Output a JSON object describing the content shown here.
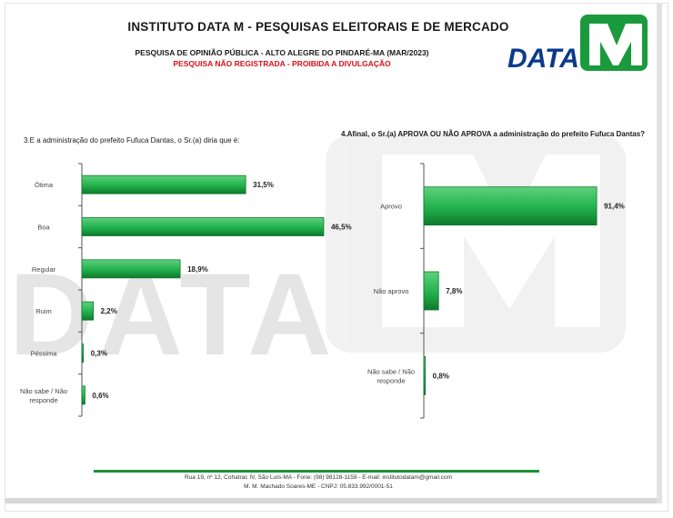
{
  "header": {
    "title": "INSTITUTO DATA M - PESQUISAS ELEITORAIS E DE MERCADO",
    "subtitle": "PESQUISA DE OPINIÃO PÚBLICA - ALTO ALEGRE DO PINDARÉ-MA (MAR/2023)",
    "warning": "PESQUISA NÃO REGISTRADA - PROIBIDA A DIVULGAÇÃO",
    "logo_text": "DATA",
    "logo_letter": "M"
  },
  "watermark_text": "DATA",
  "colors": {
    "bar_green": "#22b14c",
    "bar_green_dark": "#0e7a2c",
    "logo_blue": "#0b3a8c",
    "logo_green": "#1b9a3d",
    "warning_red": "#d8101a",
    "footer_line": "#1f8f3a"
  },
  "chart_data": [
    {
      "type": "bar",
      "orientation": "horizontal",
      "title": "3.E a administração do prefeito Fufuca Dantas, o Sr.(a) diria que é:",
      "categories": [
        "Ótima",
        "Boa",
        "Regular",
        "Ruim",
        "Péssima",
        "Não sabe / Não responde"
      ],
      "values": [
        31.5,
        46.5,
        18.9,
        2.2,
        0.3,
        0.6
      ],
      "value_labels": [
        "31,5%",
        "46,5%",
        "18,9%",
        "2,2%",
        "0,3%",
        "0,6%"
      ],
      "xlim": [
        0,
        50
      ]
    },
    {
      "type": "bar",
      "orientation": "horizontal",
      "title": "4.Afinal, o Sr.(a) APROVA OU NÃO APROVA a administração do prefeito Fufuca Dantas?",
      "categories": [
        "Aprovo",
        "Não aprovo",
        "Não sabe / Não responde"
      ],
      "values": [
        91.4,
        7.8,
        0.8
      ],
      "value_labels": [
        "91,4%",
        "7,8%",
        "0,8%"
      ],
      "xlim": [
        0,
        100
      ]
    }
  ],
  "footer": {
    "line1": "Rua 19, nº 12, Cohatrac IV, São Luís-MA - Fone: (98) 98128-1159 - E-mail: institutodatam@gmail.com",
    "line2": "M. M. Machado Soares-ME - CNPJ: 05.833.992/0001-51"
  }
}
